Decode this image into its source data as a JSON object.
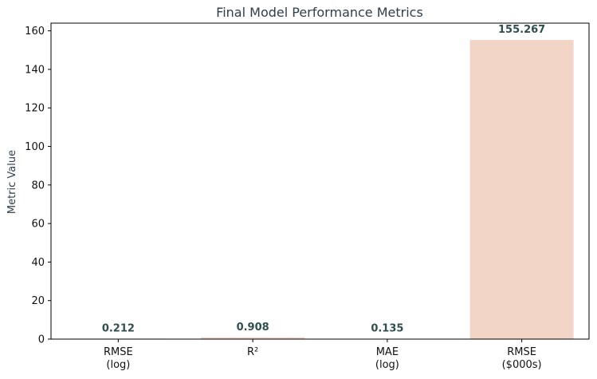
{
  "chart_data": {
    "type": "bar",
    "title": "Final Model Performance Metrics",
    "ylabel": "Metric Value",
    "xlabel": "",
    "categories": [
      [
        "RMSE",
        "(log)"
      ],
      [
        "R²"
      ],
      [
        "MAE",
        "(log)"
      ],
      [
        "RMSE",
        "($000s)"
      ]
    ],
    "values": [
      0.212,
      0.908,
      0.135,
      155.267
    ],
    "value_labels": [
      "0.212",
      "0.908",
      "0.135",
      "155.267"
    ],
    "ylim": [
      0,
      164
    ],
    "yticks": [
      0,
      20,
      40,
      60,
      80,
      100,
      120,
      140,
      160
    ],
    "grid": false,
    "bar_color": "#f3d5c8",
    "label_color": "#2f4f4f"
  }
}
